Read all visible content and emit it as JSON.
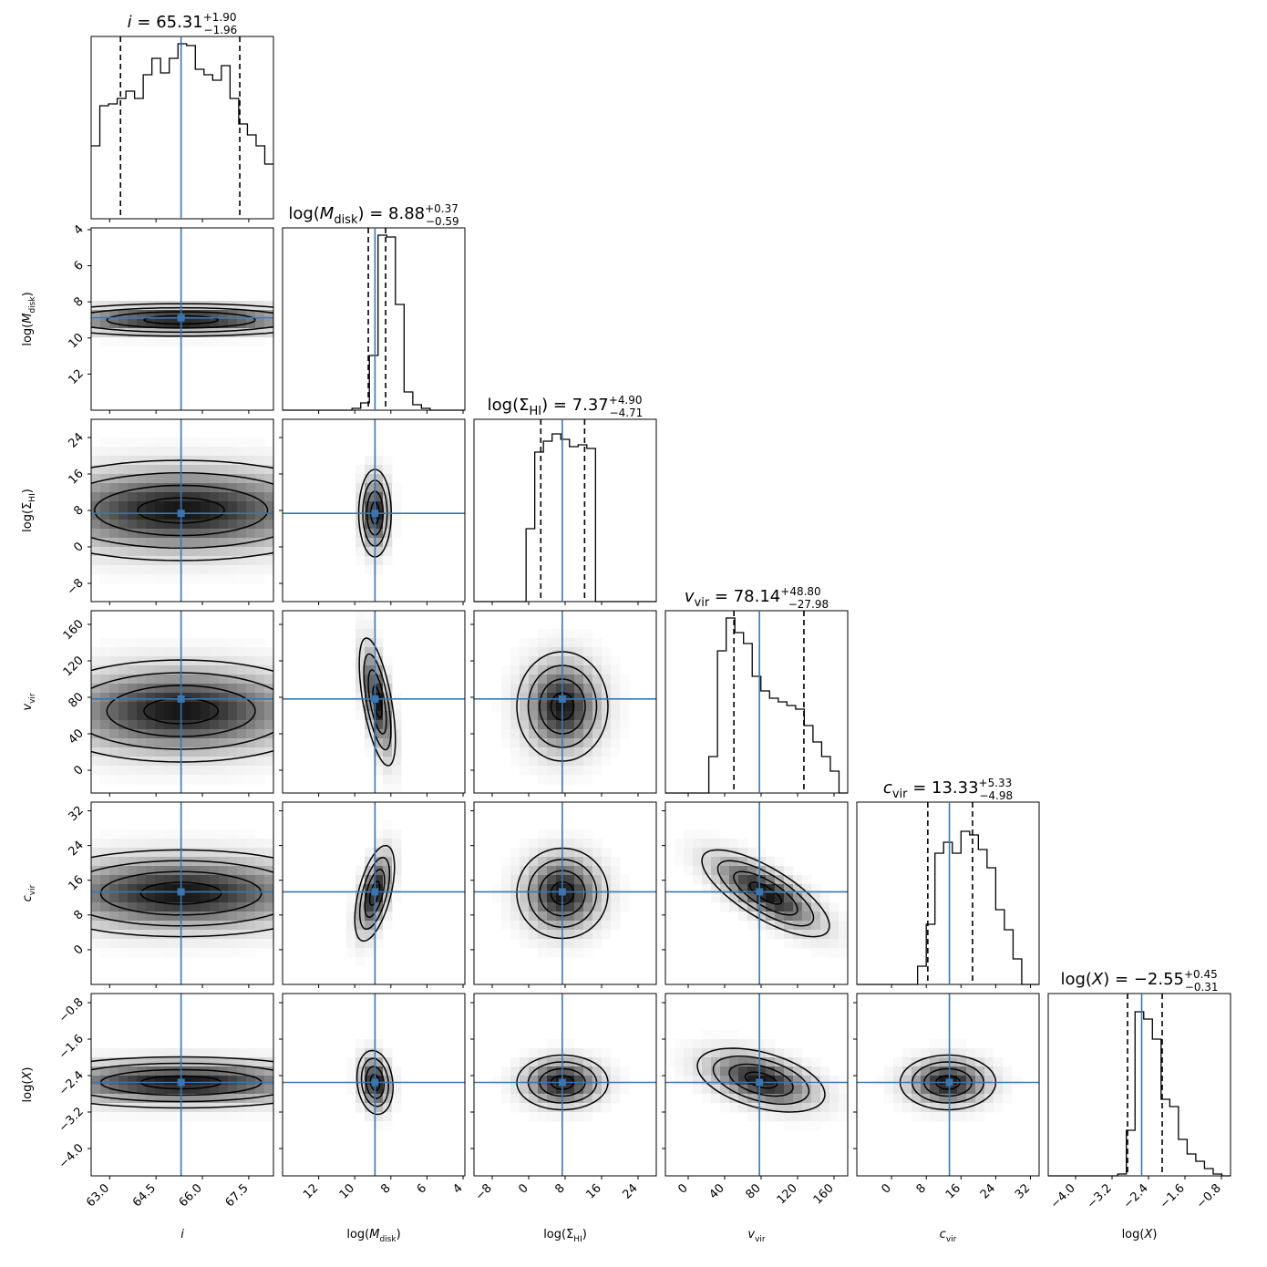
{
  "chart_data": {
    "type": "corner",
    "colors": {
      "truth": "#3b75af",
      "hist": "#000000",
      "quantile": "#000000"
    },
    "grid": false,
    "params": [
      {
        "id": "i",
        "label_base": "i",
        "label_sub": "",
        "label_italic": true,
        "label_log": false,
        "title_base": "i",
        "title_sub": "",
        "title_italic": true,
        "title_log": false,
        "title_value": "65.31",
        "title_plus": "+1.90",
        "title_minus": "−1.96",
        "range": [
          62.4,
          68.3
        ],
        "reverse_x": false,
        "reverse_y": false,
        "ticks": [
          63.0,
          64.5,
          66.0,
          67.5
        ],
        "tick_labels": [
          "63.0",
          "64.5",
          "66.0",
          "67.5"
        ],
        "median": 65.31,
        "q16": 63.35,
        "q84": 67.21,
        "hist": [
          0.4,
          0.62,
          0.63,
          0.66,
          0.7,
          0.66,
          0.79,
          0.88,
          0.8,
          0.88,
          0.96,
          0.95,
          0.82,
          0.79,
          0.76,
          0.84,
          0.66,
          0.52,
          0.46,
          0.4,
          0.3
        ]
      },
      {
        "id": "mdisk",
        "label_base": "M",
        "label_sub": "disk",
        "label_italic": true,
        "label_log": true,
        "title_base": "M",
        "title_sub": "disk",
        "title_italic": true,
        "title_log": true,
        "title_value": "8.88",
        "title_plus": "+0.37",
        "title_minus": "−0.59",
        "range": [
          3.9,
          14.0
        ],
        "reverse_x": true,
        "reverse_y": true,
        "ticks": [
          4,
          6,
          8,
          10,
          12
        ],
        "tick_labels": [
          "4",
          "6",
          "8",
          "10",
          "12"
        ],
        "median": 8.88,
        "q16": 8.29,
        "q84": 9.25,
        "hist": [
          0.0,
          0.0,
          0.0,
          0.0,
          0.0,
          0.0,
          0.0,
          0.0,
          0.01,
          0.04,
          0.3,
          0.96,
          0.95,
          0.58,
          0.1,
          0.03,
          0.01,
          0.0,
          0.0,
          0.0,
          0.0
        ]
      },
      {
        "id": "sigmahi",
        "label_base": "Σ",
        "label_sub": "HI",
        "label_italic": false,
        "label_log": true,
        "title_base": "Σ",
        "title_sub": "HI",
        "title_italic": false,
        "title_log": true,
        "title_value": "7.37",
        "title_plus": "+4.90",
        "title_minus": "−4.71",
        "range": [
          -12.0,
          28.0
        ],
        "reverse_x": false,
        "reverse_y": false,
        "ticks": [
          -8,
          0,
          8,
          16,
          24
        ],
        "tick_labels": [
          "−8",
          "0",
          "8",
          "16",
          "24"
        ],
        "median": 7.37,
        "q16": 2.66,
        "q84": 12.27,
        "hist": [
          0.0,
          0.0,
          0.0,
          0.0,
          0.0,
          0.0,
          0.4,
          0.82,
          0.88,
          0.92,
          0.89,
          0.85,
          0.86,
          0.84,
          0.0,
          0.0,
          0.0,
          0.0,
          0.0,
          0.0,
          0.0
        ]
      },
      {
        "id": "vvir",
        "label_base": "v",
        "label_sub": "vir",
        "label_italic": true,
        "label_log": false,
        "title_base": "v",
        "title_sub": "vir",
        "title_italic": true,
        "title_log": false,
        "title_value": "78.14",
        "title_plus": "+48.80",
        "title_minus": "−27.98",
        "range": [
          -25.0,
          175.0
        ],
        "reverse_x": false,
        "reverse_y": false,
        "ticks": [
          0,
          40,
          80,
          120,
          160
        ],
        "tick_labels": [
          "0",
          "40",
          "80",
          "120",
          "160"
        ],
        "median": 78.14,
        "q16": 50.16,
        "q84": 126.94,
        "hist": [
          0.0,
          0.0,
          0.0,
          0.0,
          0.0,
          0.2,
          0.78,
          0.96,
          0.88,
          0.82,
          0.64,
          0.56,
          0.52,
          0.5,
          0.48,
          0.46,
          0.37,
          0.28,
          0.2,
          0.12,
          0.0
        ]
      },
      {
        "id": "cvir",
        "label_base": "c",
        "label_sub": "vir",
        "label_italic": true,
        "label_log": false,
        "title_base": "c",
        "title_sub": "vir",
        "title_italic": true,
        "title_log": false,
        "title_value": "13.33",
        "title_plus": "+5.33",
        "title_minus": "−4.98",
        "range": [
          -8.0,
          34.0
        ],
        "reverse_x": false,
        "reverse_y": false,
        "ticks": [
          0,
          8,
          16,
          24,
          32
        ],
        "tick_labels": [
          "0",
          "8",
          "16",
          "24",
          "32"
        ],
        "median": 13.33,
        "q16": 8.35,
        "q84": 18.66,
        "hist": [
          0.0,
          0.0,
          0.0,
          0.0,
          0.0,
          0.0,
          0.0,
          0.1,
          0.33,
          0.72,
          0.78,
          0.72,
          0.84,
          0.82,
          0.74,
          0.64,
          0.41,
          0.3,
          0.14,
          0.0,
          0.0
        ]
      },
      {
        "id": "logx",
        "label_base": "X",
        "label_sub": "",
        "label_italic": true,
        "label_log": true,
        "title_base": "X",
        "title_sub": "",
        "title_italic": true,
        "title_log": true,
        "title_value": "−2.55",
        "title_plus": "+0.45",
        "title_minus": "−0.31",
        "range": [
          -4.6,
          -0.6
        ],
        "reverse_x": false,
        "reverse_y": false,
        "ticks": [
          -4.0,
          -3.2,
          -2.4,
          -1.6,
          -0.8
        ],
        "tick_labels": [
          "−4.0",
          "−3.2",
          "−2.4",
          "−1.6",
          "−0.8"
        ],
        "median": -2.55,
        "q16": -2.86,
        "q84": -2.1,
        "hist": [
          0.0,
          0.0,
          0.0,
          0.0,
          0.0,
          0.0,
          0.0,
          0.0,
          0.0,
          0.0,
          0.0,
          0.0,
          0.0,
          0.0,
          0.0,
          0.0,
          0.0,
          0.0,
          0.0,
          0.0,
          0.0
        ]
      }
    ],
    "hist_logx": [
      0.0,
      0.0,
      0.0,
      0.0,
      0.0,
      0.0,
      0.0,
      0.0,
      0.01,
      0.25,
      0.9,
      0.86,
      0.75,
      0.42,
      0.38,
      0.2,
      0.12,
      0.08,
      0.04,
      0.01,
      0.0
    ],
    "pairs": [
      {
        "x": "i",
        "y": "mdisk",
        "center": [
          65.31,
          9.0
        ],
        "sigma": [
          2.4,
          0.45
        ],
        "rho": 0.0,
        "cx": 65.31,
        "cy": 8.88
      },
      {
        "x": "i",
        "y": "sigmahi",
        "center": [
          65.31,
          8.0
        ],
        "sigma": [
          2.8,
          5.5
        ],
        "rho": 0.0,
        "cx": 65.31,
        "cy": 7.37
      },
      {
        "x": "i",
        "y": "vvir",
        "center": [
          65.31,
          65.0
        ],
        "sigma": [
          2.4,
          28.0
        ],
        "rho": 0.0,
        "cx": 65.31,
        "cy": 78.14
      },
      {
        "x": "i",
        "y": "cvir",
        "center": [
          65.31,
          13.0
        ],
        "sigma": [
          2.6,
          5.0
        ],
        "rho": 0.0,
        "cx": 65.31,
        "cy": 13.33
      },
      {
        "x": "i",
        "y": "logx",
        "center": [
          65.31,
          -2.55
        ],
        "sigma": [
          2.6,
          0.28
        ],
        "rho": 0.0,
        "cx": 65.31,
        "cy": -2.55
      },
      {
        "x": "mdisk",
        "y": "sigmahi",
        "center": [
          8.88,
          7.4
        ],
        "sigma": [
          0.45,
          4.8
        ],
        "rho": 0.0,
        "cx": 8.88,
        "cy": 7.37
      },
      {
        "x": "mdisk",
        "y": "vvir",
        "center": [
          8.75,
          75.0
        ],
        "sigma": [
          0.5,
          35.0
        ],
        "rho": 0.6,
        "cx": 8.88,
        "cy": 78.14
      },
      {
        "x": "mdisk",
        "y": "cvir",
        "center": [
          8.9,
          13.0
        ],
        "sigma": [
          0.55,
          5.5
        ],
        "rho": -0.55,
        "cx": 8.88,
        "cy": 13.33
      },
      {
        "x": "mdisk",
        "y": "logx",
        "center": [
          8.88,
          -2.55
        ],
        "sigma": [
          0.5,
          0.35
        ],
        "rho": 0.15,
        "cx": 8.88,
        "cy": -2.55
      },
      {
        "x": "sigmahi",
        "y": "vvir",
        "center": [
          7.4,
          70.0
        ],
        "sigma": [
          5.0,
          30.0
        ],
        "rho": 0.0,
        "cx": 7.37,
        "cy": 78.14
      },
      {
        "x": "sigmahi",
        "y": "cvir",
        "center": [
          7.4,
          13.0
        ],
        "sigma": [
          5.0,
          5.2
        ],
        "rho": 0.0,
        "cx": 7.37,
        "cy": 13.33
      },
      {
        "x": "sigmahi",
        "y": "logx",
        "center": [
          7.4,
          -2.55
        ],
        "sigma": [
          5.0,
          0.3
        ],
        "rho": 0.0,
        "cx": 7.37,
        "cy": -2.55
      },
      {
        "x": "vvir",
        "y": "cvir",
        "center": [
          85.0,
          13.0
        ],
        "sigma": [
          35.0,
          5.0
        ],
        "rho": -0.75,
        "cx": 78.14,
        "cy": 13.33
      },
      {
        "x": "vvir",
        "y": "logx",
        "center": [
          80.0,
          -2.5
        ],
        "sigma": [
          35.0,
          0.35
        ],
        "rho": -0.45,
        "cx": 78.14,
        "cy": -2.55
      },
      {
        "x": "cvir",
        "y": "logx",
        "center": [
          13.0,
          -2.55
        ],
        "sigma": [
          5.5,
          0.3
        ],
        "rho": 0.0,
        "cx": 13.33,
        "cy": -2.55
      }
    ]
  }
}
